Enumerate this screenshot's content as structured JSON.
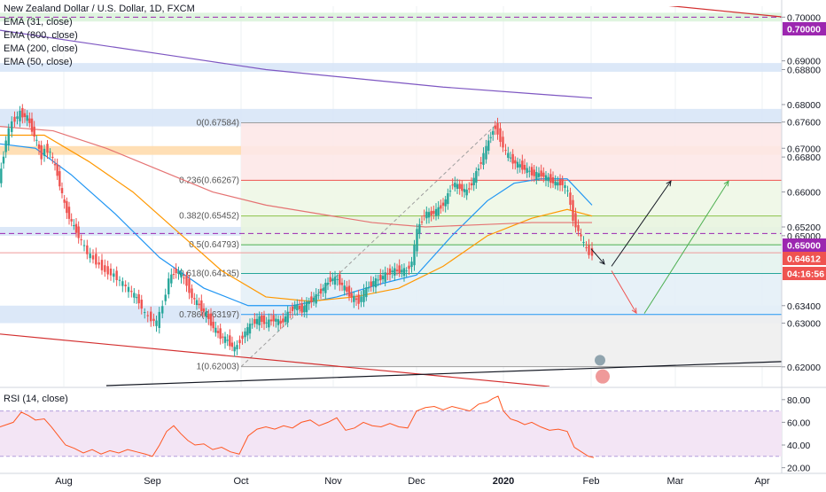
{
  "header": {
    "symbol_title": "New Zealand Dollar / U.S. Dollar, 1D, FXCM",
    "indicators": [
      "EMA (31, close)",
      "EMA (800, close)",
      "EMA (200, close)",
      "EMA (50, close)"
    ]
  },
  "rsi_panel": {
    "label": "RSI (14, close)",
    "ticks": [
      "80.00",
      "60.00",
      "40.00",
      "20.00"
    ]
  },
  "colors": {
    "bull": "#26a69a",
    "bear": "#ef5350",
    "ema31": "#2196f3",
    "ema50": "#ff9800",
    "ema200": "#e57373",
    "ema800": "#7e57c2",
    "rsi": "#ff5722",
    "rsi_band": "#f3e5f5",
    "blue_zone": "#d6e4f7",
    "orange_zone": "#ffd9a8",
    "green_zone": "#d9f2d9"
  },
  "chart_data": {
    "type": "candlestick",
    "title": "New Zealand Dollar / U.S. Dollar, 1D, FXCM",
    "x_ticks": [
      "Aug",
      "Sep",
      "Oct",
      "Nov",
      "Dec",
      "2020",
      "Feb",
      "Mar",
      "Apr"
    ],
    "y_ticks": [
      "0.70000",
      "0.69000",
      "0.68800",
      "0.68000",
      "0.67600",
      "0.67000",
      "0.66800",
      "0.66000",
      "0.65200",
      "0.65000",
      "0.63400",
      "0.63000",
      "0.62000"
    ],
    "ylim": [
      0.6155,
      0.7025
    ],
    "price_badges": [
      {
        "label": "0.70000",
        "color": "#9c27b0"
      },
      {
        "label": "0.65000",
        "color": "#9c27b0"
      },
      {
        "label": "0.64612",
        "color": "#ef5350"
      },
      {
        "label": "04:16:56",
        "color": "#ef5350"
      }
    ],
    "close_path": [
      [
        0,
        0.662
      ],
      [
        8,
        0.672
      ],
      [
        15,
        0.676
      ],
      [
        24,
        0.678
      ],
      [
        32,
        0.677
      ],
      [
        40,
        0.673
      ],
      [
        48,
        0.668
      ],
      [
        52,
        0.67
      ],
      [
        58,
        0.669
      ],
      [
        66,
        0.664
      ],
      [
        74,
        0.657
      ],
      [
        82,
        0.653
      ],
      [
        90,
        0.65
      ],
      [
        100,
        0.646
      ],
      [
        110,
        0.644
      ],
      [
        120,
        0.642
      ],
      [
        130,
        0.641
      ],
      [
        140,
        0.639
      ],
      [
        150,
        0.637
      ],
      [
        158,
        0.635
      ],
      [
        165,
        0.632
      ],
      [
        172,
        0.631
      ],
      [
        178,
        0.63
      ],
      [
        185,
        0.634
      ],
      [
        192,
        0.64
      ],
      [
        200,
        0.642
      ],
      [
        206,
        0.641
      ],
      [
        212,
        0.639
      ],
      [
        218,
        0.636
      ],
      [
        226,
        0.634
      ],
      [
        234,
        0.632
      ],
      [
        242,
        0.629
      ],
      [
        250,
        0.627
      ],
      [
        258,
        0.626
      ],
      [
        266,
        0.624
      ],
      [
        272,
        0.626
      ],
      [
        278,
        0.628
      ],
      [
        286,
        0.63
      ],
      [
        294,
        0.631
      ],
      [
        302,
        0.63
      ],
      [
        310,
        0.631
      ],
      [
        318,
        0.63
      ],
      [
        326,
        0.632
      ],
      [
        334,
        0.634
      ],
      [
        342,
        0.633
      ],
      [
        350,
        0.635
      ],
      [
        358,
        0.636
      ],
      [
        366,
        0.638
      ],
      [
        374,
        0.64
      ],
      [
        382,
        0.64
      ],
      [
        390,
        0.638
      ],
      [
        398,
        0.636
      ],
      [
        406,
        0.635
      ],
      [
        412,
        0.637
      ],
      [
        420,
        0.639
      ],
      [
        428,
        0.64
      ],
      [
        436,
        0.641
      ],
      [
        444,
        0.642
      ],
      [
        452,
        0.642
      ],
      [
        460,
        0.642
      ],
      [
        466,
        0.644
      ],
      [
        472,
        0.651
      ],
      [
        480,
        0.655
      ],
      [
        488,
        0.655
      ],
      [
        496,
        0.656
      ],
      [
        504,
        0.658
      ],
      [
        512,
        0.662
      ],
      [
        520,
        0.661
      ],
      [
        528,
        0.66
      ],
      [
        536,
        0.663
      ],
      [
        544,
        0.667
      ],
      [
        550,
        0.67
      ],
      [
        555,
        0.673
      ],
      [
        560,
        0.675
      ],
      [
        566,
        0.672
      ],
      [
        572,
        0.669
      ],
      [
        580,
        0.667
      ],
      [
        588,
        0.666
      ],
      [
        596,
        0.665
      ],
      [
        604,
        0.664
      ],
      [
        612,
        0.664
      ],
      [
        620,
        0.663
      ],
      [
        628,
        0.662
      ],
      [
        636,
        0.662
      ],
      [
        642,
        0.66
      ],
      [
        648,
        0.654
      ],
      [
        654,
        0.651
      ],
      [
        660,
        0.648
      ],
      [
        666,
        0.646
      ],
      [
        670,
        0.646
      ]
    ],
    "series": [
      {
        "name": "EMA (31, close)",
        "color": "#2196f3",
        "points": [
          [
            0,
            0.671
          ],
          [
            40,
            0.67
          ],
          [
            80,
            0.664
          ],
          [
            130,
            0.655
          ],
          [
            180,
            0.645
          ],
          [
            230,
            0.638
          ],
          [
            280,
            0.634
          ],
          [
            330,
            0.634
          ],
          [
            380,
            0.636
          ],
          [
            430,
            0.639
          ],
          [
            470,
            0.641
          ],
          [
            510,
            0.65
          ],
          [
            550,
            0.658
          ],
          [
            580,
            0.662
          ],
          [
            610,
            0.663
          ],
          [
            640,
            0.663
          ],
          [
            668,
            0.657
          ]
        ]
      },
      {
        "name": "EMA (50, close)",
        "color": "#ff9800",
        "points": [
          [
            0,
            0.673
          ],
          [
            50,
            0.673
          ],
          [
            100,
            0.667
          ],
          [
            150,
            0.66
          ],
          [
            200,
            0.651
          ],
          [
            250,
            0.642
          ],
          [
            300,
            0.636
          ],
          [
            350,
            0.635
          ],
          [
            400,
            0.636
          ],
          [
            450,
            0.638
          ],
          [
            500,
            0.643
          ],
          [
            550,
            0.65
          ],
          [
            600,
            0.654
          ],
          [
            640,
            0.656
          ],
          [
            668,
            0.6545
          ]
        ]
      },
      {
        "name": "EMA (200, close)",
        "color": "#e57373",
        "points": [
          [
            0,
            0.675
          ],
          [
            60,
            0.674
          ],
          [
            120,
            0.67
          ],
          [
            180,
            0.665
          ],
          [
            240,
            0.66
          ],
          [
            300,
            0.657
          ],
          [
            360,
            0.655
          ],
          [
            420,
            0.653
          ],
          [
            480,
            0.652
          ],
          [
            540,
            0.6525
          ],
          [
            600,
            0.653
          ],
          [
            668,
            0.653
          ]
        ]
      },
      {
        "name": "EMA (800, close)",
        "color": "#7e57c2",
        "points": [
          [
            0,
            0.697
          ],
          [
            100,
            0.694
          ],
          [
            200,
            0.691
          ],
          [
            300,
            0.688
          ],
          [
            400,
            0.686
          ],
          [
            500,
            0.684
          ],
          [
            600,
            0.6825
          ],
          [
            668,
            0.6815
          ]
        ]
      }
    ],
    "fibonacci": {
      "levels": [
        {
          "ratio": "0",
          "value": 0.67584,
          "label": "0(0.67584)"
        },
        {
          "ratio": "0.236",
          "value": 0.66267,
          "label": "0.236(0.66267)"
        },
        {
          "ratio": "0.382",
          "value": 0.65452,
          "label": "0.382(0.65452)"
        },
        {
          "ratio": "0.5",
          "value": 0.64793,
          "label": "0.5(0.64793)"
        },
        {
          "ratio": "0.618",
          "value": 0.64135,
          "label": "0.618(0.64135)"
        },
        {
          "ratio": "0.786",
          "value": 0.63197,
          "label": "0.786(0.63197)"
        },
        {
          "ratio": "1",
          "value": 0.62003,
          "label": "1(0.62003)"
        }
      ]
    },
    "zones": [
      {
        "from": 0.699,
        "to": 0.701,
        "color": "#d9f2d9"
      },
      {
        "from": 0.6875,
        "to": 0.6895,
        "color": "#d6e4f7"
      },
      {
        "from": 0.675,
        "to": 0.679,
        "color": "#d6e4f7"
      },
      {
        "from": 0.6685,
        "to": 0.6705,
        "color": "#ffd9a8"
      },
      {
        "from": 0.65,
        "to": 0.652,
        "color": "#d6e4f7"
      },
      {
        "from": 0.63,
        "to": 0.634,
        "color": "#d6e4f7"
      }
    ],
    "rsi": {
      "name": "RSI (14, close)",
      "ylim": [
        15,
        90
      ],
      "band": [
        30,
        70
      ],
      "points": [
        [
          0,
          56
        ],
        [
          15,
          60
        ],
        [
          24,
          69
        ],
        [
          32,
          66
        ],
        [
          40,
          62
        ],
        [
          50,
          63
        ],
        [
          58,
          56
        ],
        [
          66,
          48
        ],
        [
          74,
          40
        ],
        [
          84,
          37
        ],
        [
          94,
          33
        ],
        [
          104,
          36
        ],
        [
          114,
          32
        ],
        [
          124,
          35
        ],
        [
          134,
          33
        ],
        [
          144,
          36
        ],
        [
          154,
          34
        ],
        [
          164,
          32
        ],
        [
          172,
          30
        ],
        [
          180,
          40
        ],
        [
          188,
          52
        ],
        [
          196,
          57
        ],
        [
          204,
          50
        ],
        [
          212,
          44
        ],
        [
          220,
          40
        ],
        [
          230,
          41
        ],
        [
          240,
          36
        ],
        [
          250,
          38
        ],
        [
          260,
          34
        ],
        [
          270,
          32
        ],
        [
          280,
          48
        ],
        [
          290,
          54
        ],
        [
          300,
          56
        ],
        [
          310,
          54
        ],
        [
          320,
          57
        ],
        [
          330,
          55
        ],
        [
          340,
          60
        ],
        [
          350,
          62
        ],
        [
          360,
          57
        ],
        [
          370,
          60
        ],
        [
          380,
          64
        ],
        [
          390,
          53
        ],
        [
          400,
          55
        ],
        [
          410,
          60
        ],
        [
          420,
          57
        ],
        [
          430,
          56
        ],
        [
          440,
          59
        ],
        [
          450,
          56
        ],
        [
          460,
          55
        ],
        [
          470,
          70
        ],
        [
          480,
          73
        ],
        [
          490,
          74
        ],
        [
          500,
          71
        ],
        [
          510,
          74
        ],
        [
          520,
          72
        ],
        [
          530,
          70
        ],
        [
          540,
          76
        ],
        [
          550,
          78
        ],
        [
          556,
          81
        ],
        [
          562,
          83
        ],
        [
          568,
          70
        ],
        [
          576,
          63
        ],
        [
          584,
          61
        ],
        [
          592,
          58
        ],
        [
          600,
          60
        ],
        [
          610,
          56
        ],
        [
          620,
          53
        ],
        [
          630,
          54
        ],
        [
          640,
          52
        ],
        [
          648,
          38
        ],
        [
          656,
          34
        ],
        [
          664,
          30
        ],
        [
          670,
          29
        ]
      ]
    }
  }
}
